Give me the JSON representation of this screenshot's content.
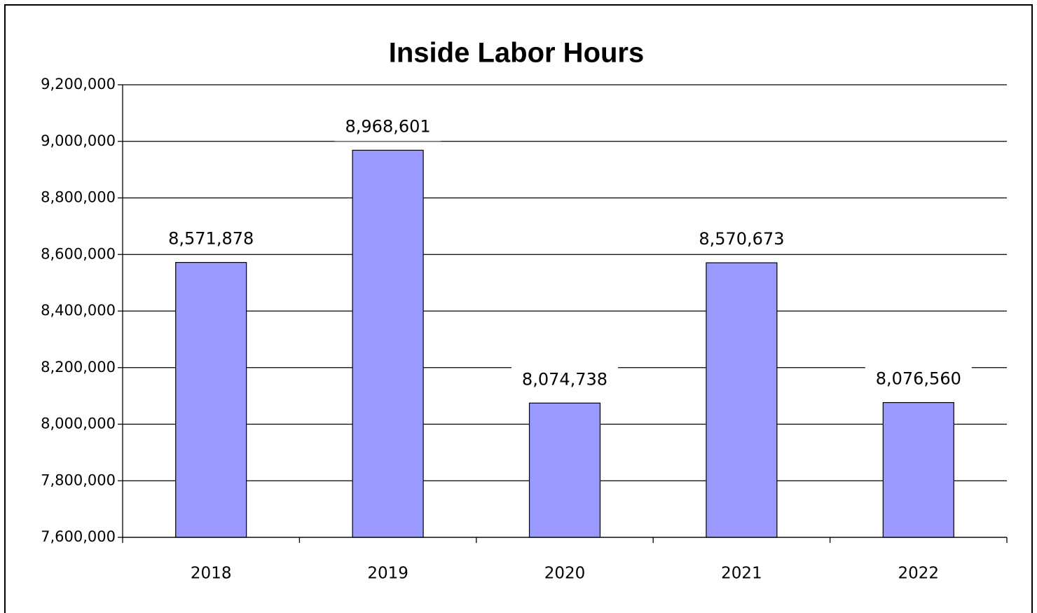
{
  "chart_data": {
    "type": "bar",
    "title": "Inside Labor Hours",
    "categories": [
      "2018",
      "2019",
      "2020",
      "2021",
      "2022"
    ],
    "values": [
      8571878,
      8968601,
      8074738,
      8570673,
      8076560
    ],
    "value_labels": [
      "8,571,878",
      "8,968,601",
      "8,074,738",
      "8,570,673",
      "8,076,560"
    ],
    "color": "#9999ff",
    "ylim": [
      7600000,
      9200000
    ],
    "yticks": [
      {
        "value": 7600000,
        "label": "7,600,000"
      },
      {
        "value": 7800000,
        "label": "7,800,000"
      },
      {
        "value": 8000000,
        "label": "8,000,000"
      },
      {
        "value": 8200000,
        "label": "8,200,000"
      },
      {
        "value": 8400000,
        "label": "8,400,000"
      },
      {
        "value": 8600000,
        "label": "8,600,000"
      },
      {
        "value": 8800000,
        "label": "8,800,000"
      },
      {
        "value": 9000000,
        "label": "9,000,000"
      },
      {
        "value": 9200000,
        "label": "9,200,000"
      }
    ],
    "grid": true
  }
}
